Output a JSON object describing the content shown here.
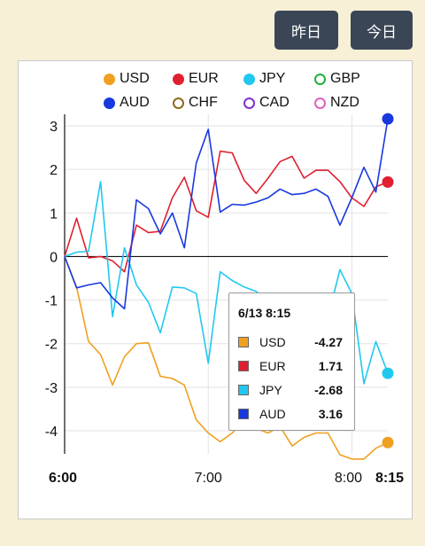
{
  "nav": {
    "prev_label": "昨日",
    "today_label": "今日"
  },
  "legend": [
    {
      "name": "USD",
      "color": "#f0a020"
    },
    {
      "name": "EUR",
      "color": "#e02030"
    },
    {
      "name": "JPY",
      "color": "#20c8f0"
    },
    {
      "name": "GBP",
      "color": "#20b040"
    },
    {
      "name": "AUD",
      "color": "#1838e0"
    },
    {
      "name": "CHF",
      "color": "#8b6a20"
    },
    {
      "name": "CAD",
      "color": "#8030d0"
    },
    {
      "name": "NZD",
      "color": "#e060c0"
    }
  ],
  "tooltip": {
    "title": "6/13 8:15",
    "rows": [
      {
        "name": "USD",
        "value": "-4.27",
        "color": "#f0a020"
      },
      {
        "name": "EUR",
        "value": "1.71",
        "color": "#e02030"
      },
      {
        "name": "JPY",
        "value": "-2.68",
        "color": "#20c8f0"
      },
      {
        "name": "AUD",
        "value": "3.16",
        "color": "#1838e0"
      }
    ]
  },
  "chart_data": {
    "type": "line",
    "ylim": [
      -4.6,
      3.2
    ],
    "xlim": [
      0,
      135
    ],
    "yticks": [
      3,
      2,
      1,
      0,
      -1,
      -2,
      -3,
      -4
    ],
    "xticks": [
      {
        "x": 0,
        "label": "6:00",
        "bold": true
      },
      {
        "x": 60,
        "label": "7:00",
        "bold": false
      },
      {
        "x": 120,
        "label": "8:00",
        "bold": false
      },
      {
        "x": 135,
        "label": "8:15",
        "bold": true
      }
    ],
    "grid": true,
    "series": [
      {
        "name": "USD",
        "color": "#f0a020",
        "x": [
          0,
          5,
          10,
          15,
          20,
          25,
          30,
          35,
          40,
          45,
          50,
          55,
          60,
          65,
          70,
          75,
          80,
          85,
          90,
          95,
          100,
          105,
          110,
          115,
          120,
          125,
          130,
          135
        ],
        "values": [
          0,
          -0.7,
          -1.95,
          -2.25,
          -2.95,
          -2.3,
          -2.0,
          -1.98,
          -2.75,
          -2.8,
          -2.95,
          -3.75,
          -4.05,
          -4.25,
          -4.05,
          -3.75,
          -3.95,
          -4.05,
          -3.9,
          -4.35,
          -4.15,
          -4.05,
          -4.05,
          -4.55,
          -4.65,
          -4.65,
          -4.4,
          -4.27
        ]
      },
      {
        "name": "EUR",
        "color": "#e02030",
        "x": [
          0,
          5,
          10,
          15,
          20,
          25,
          30,
          35,
          40,
          45,
          50,
          55,
          60,
          65,
          70,
          75,
          80,
          85,
          90,
          95,
          100,
          105,
          110,
          115,
          120,
          125,
          130,
          135
        ],
        "values": [
          0,
          0.88,
          -0.03,
          0.0,
          -0.1,
          -0.35,
          0.72,
          0.55,
          0.58,
          1.35,
          1.82,
          1.05,
          0.9,
          2.42,
          2.38,
          1.75,
          1.45,
          1.8,
          2.18,
          2.3,
          1.8,
          1.98,
          1.98,
          1.72,
          1.35,
          1.15,
          1.6,
          1.71
        ]
      },
      {
        "name": "JPY",
        "color": "#20c8f0",
        "x": [
          0,
          5,
          10,
          15,
          20,
          25,
          30,
          35,
          40,
          45,
          50,
          55,
          60,
          65,
          70,
          75,
          80,
          85,
          90,
          95,
          100,
          105,
          110,
          115,
          120,
          125,
          130,
          135
        ],
        "values": [
          0,
          0.1,
          0.12,
          1.72,
          -1.38,
          0.2,
          -0.65,
          -1.05,
          -1.75,
          -0.7,
          -0.72,
          -0.85,
          -2.45,
          -0.35,
          -0.55,
          -0.7,
          -0.8,
          -1.05,
          -0.95,
          -0.9,
          -1.45,
          -1.6,
          -1.4,
          -0.3,
          -0.85,
          -2.92,
          -1.95,
          -2.68
        ]
      },
      {
        "name": "AUD",
        "color": "#1838e0",
        "x": [
          0,
          5,
          10,
          15,
          20,
          25,
          30,
          35,
          40,
          45,
          50,
          55,
          60,
          65,
          70,
          75,
          80,
          85,
          90,
          95,
          100,
          105,
          110,
          115,
          120,
          125,
          130,
          135
        ],
        "values": [
          0,
          -0.72,
          -0.65,
          -0.6,
          -0.95,
          -1.2,
          1.3,
          1.1,
          0.52,
          1.0,
          0.2,
          2.15,
          2.92,
          1.02,
          1.2,
          1.18,
          1.25,
          1.35,
          1.55,
          1.42,
          1.45,
          1.55,
          1.38,
          0.72,
          1.35,
          2.05,
          1.48,
          3.16
        ]
      }
    ]
  }
}
